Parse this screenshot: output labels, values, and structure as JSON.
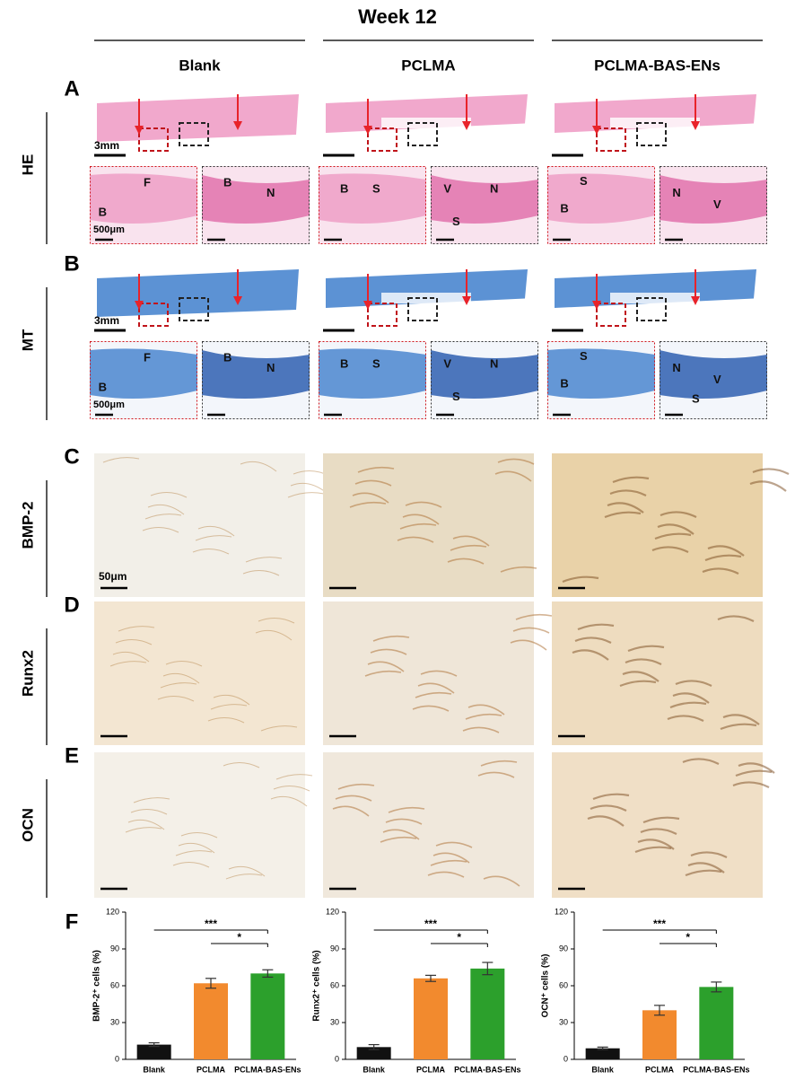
{
  "figure": {
    "title": "Week 12",
    "columns": [
      "Blank",
      "PCLMA",
      "PCLMA-BAS-ENs"
    ],
    "rows": [
      {
        "panel": "A",
        "label": "HE"
      },
      {
        "panel": "B",
        "label": "MT"
      },
      {
        "panel": "C",
        "label": "BMP-2"
      },
      {
        "panel": "D",
        "label": "Runx2"
      },
      {
        "panel": "E",
        "label": "OCN"
      }
    ],
    "panel_f": "F",
    "scale_labels": {
      "overview": "3mm",
      "zoom": "500μm",
      "ihc": "50μm"
    },
    "zoom_labels": {
      "he": [
        [
          "F",
          "B"
        ],
        [
          "B",
          "N"
        ],
        [
          "B",
          "S"
        ],
        [
          "V",
          "N",
          "S"
        ],
        [
          "S",
          "B"
        ],
        [
          "N",
          "V"
        ]
      ],
      "mt": [
        [
          "F",
          "B"
        ],
        [
          "B",
          "N"
        ],
        [
          "B",
          "S"
        ],
        [
          "V",
          "N",
          "S"
        ],
        [
          "S",
          "B"
        ],
        [
          "N",
          "V",
          "S"
        ]
      ]
    }
  },
  "chart_data": [
    {
      "type": "bar",
      "y_label": "BMP-2⁺ cells (%)",
      "categories": [
        "Blank",
        "PCLMA",
        "PCLMA-BAS-ENs"
      ],
      "values": [
        12,
        62,
        70
      ],
      "errors": [
        1.5,
        4,
        3
      ],
      "colors": [
        "#111111",
        "#f28a2e",
        "#2ca02c"
      ],
      "ylim": [
        0,
        120
      ],
      "yticks": [
        0,
        30,
        60,
        90,
        120
      ],
      "significance": [
        "***",
        "*"
      ]
    },
    {
      "type": "bar",
      "y_label": "Runx2⁺ cells (%)",
      "categories": [
        "Blank",
        "PCLMA",
        "PCLMA-BAS-ENs"
      ],
      "values": [
        10,
        66,
        74
      ],
      "errors": [
        2,
        2.5,
        5
      ],
      "colors": [
        "#111111",
        "#f28a2e",
        "#2ca02c"
      ],
      "ylim": [
        0,
        120
      ],
      "yticks": [
        0,
        30,
        60,
        90,
        120
      ],
      "significance": [
        "***",
        "*"
      ]
    },
    {
      "type": "bar",
      "y_label": "OCN⁺ cells  (%)",
      "categories": [
        "Blank",
        "PCLMA",
        "PCLMA-BAS-ENs"
      ],
      "values": [
        9,
        40,
        59
      ],
      "errors": [
        1,
        4,
        4
      ],
      "colors": [
        "#111111",
        "#f28a2e",
        "#2ca02c"
      ],
      "ylim": [
        0,
        120
      ],
      "yticks": [
        0,
        30,
        60,
        90,
        120
      ],
      "significance": [
        "***",
        "*"
      ]
    }
  ]
}
